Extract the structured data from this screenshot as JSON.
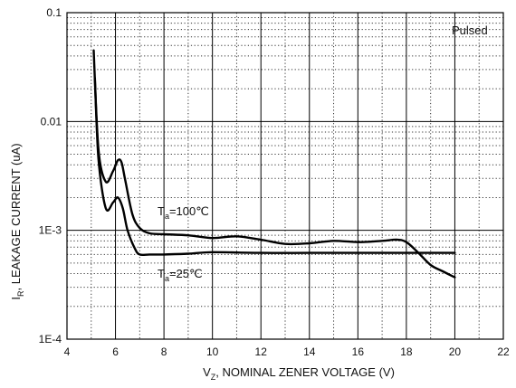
{
  "chart_data": {
    "type": "line",
    "x_label_main": "V",
    "x_label_sub": "Z",
    "x_label_rest": ", NOMINAL ZENER VOLTAGE (V)",
    "y_label_main": "I",
    "y_label_sub": "R",
    "y_label_rest": ", LEAKAGE CURRENT (uA)",
    "xlim": [
      4,
      22
    ],
    "ylim": [
      0.0001,
      0.1
    ],
    "yscale": "log",
    "x_ticks": [
      "4",
      "6",
      "8",
      "10",
      "12",
      "14",
      "16",
      "18",
      "20",
      "22"
    ],
    "y_ticks": [
      "1E-4",
      "1E-3",
      "0.01",
      "0.1"
    ],
    "grid": true,
    "annotation": "Pulsed",
    "series": [
      {
        "name_main": "T",
        "name_sub": "a",
        "name_rest": "=100℃",
        "x": [
          5.1,
          5.3,
          5.6,
          5.9,
          6.1,
          6.25,
          6.4,
          6.7,
          7.0,
          7.4,
          8.0,
          9.0,
          10.0,
          11.0,
          12.0,
          13.0,
          14.0,
          15.0,
          16.0,
          17.0,
          17.6,
          18.0,
          18.5,
          19.0,
          19.5,
          20.0
        ],
        "y": [
          0.045,
          0.0055,
          0.0028,
          0.0035,
          0.0044,
          0.0042,
          0.0029,
          0.0014,
          0.00105,
          0.00094,
          0.00092,
          0.0009,
          0.00085,
          0.00088,
          0.00082,
          0.00075,
          0.00076,
          0.0008,
          0.00078,
          0.0008,
          0.00082,
          0.00078,
          0.00062,
          0.00048,
          0.00042,
          0.00037
        ]
      },
      {
        "name_main": "T",
        "name_sub": "a",
        "name_rest": "=25℃",
        "x": [
          5.15,
          5.3,
          5.6,
          5.9,
          6.1,
          6.3,
          6.5,
          6.8,
          7.0,
          7.4,
          8.0,
          9.0,
          10.0,
          12.0,
          14.0,
          16.0,
          18.0,
          20.0
        ],
        "y": [
          0.025,
          0.0045,
          0.0016,
          0.0018,
          0.002,
          0.0016,
          0.001,
          0.00068,
          0.0006,
          0.0006,
          0.0006,
          0.00061,
          0.00063,
          0.00062,
          0.00062,
          0.00062,
          0.00062,
          0.00062
        ]
      }
    ]
  }
}
